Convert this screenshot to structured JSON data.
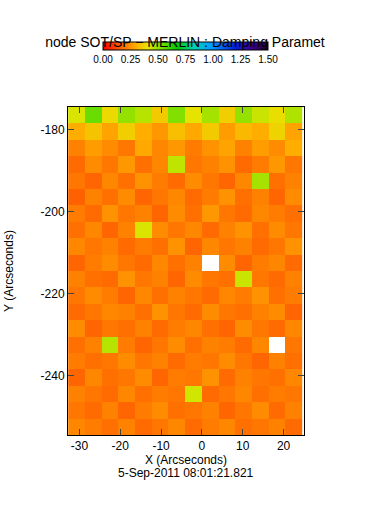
{
  "chart_data": {
    "type": "heatmap",
    "title": "node SOT/SP − MERLIN : Damping Paramet",
    "x_label": "X (Arcseconds)",
    "y_label": "Y (Arcseconds)",
    "annotation": "5-Sep-2011 08:01:21.821",
    "xlim": [
      -32.8,
      25
    ],
    "ylim": [
      -254.5,
      -174.5
    ],
    "xticks": [
      -30,
      -20,
      -10,
      0,
      10,
      20
    ],
    "yticks": [
      -180,
      -200,
      -220,
      -240
    ],
    "zlim": [
      0,
      1.5
    ],
    "zticks": [
      {
        "value": 0,
        "label": "0.00"
      },
      {
        "value": 0.25,
        "label": "0.25"
      },
      {
        "value": 0.5,
        "label": "0.50"
      },
      {
        "value": 0.75,
        "label": "0.75"
      },
      {
        "value": 1,
        "label": "1.00"
      },
      {
        "value": 1.25,
        "label": "1.25"
      },
      {
        "value": 1.5,
        "label": "1.50"
      }
    ],
    "x": [
      -30.7,
      -26.6,
      -22.5,
      -18.4,
      -14.3,
      -10.2,
      -6.1,
      -2.0,
      2.1,
      6.2,
      10.3,
      14.4,
      18.5,
      22.6
    ],
    "y": [
      -176.5,
      -180.5,
      -184.5,
      -188.5,
      -192.5,
      -196.5,
      -200.5,
      -204.5,
      -208.5,
      -212.5,
      -216.5,
      -220.5,
      -224.5,
      -228.5,
      -232.5,
      -236.5,
      -240.5,
      -244.5,
      -248.5,
      -252.5
    ],
    "z": [
      [
        0.42,
        0.55,
        0.38,
        0.5,
        0.46,
        0.35,
        0.52,
        0.4,
        0.48,
        0.36,
        0.5,
        0.44,
        0.39,
        0.47
      ],
      [
        0.3,
        0.34,
        0.28,
        0.36,
        0.3,
        0.26,
        0.33,
        0.29,
        0.35,
        0.27,
        0.32,
        0.3,
        0.37,
        0.28
      ],
      [
        0.22,
        0.27,
        0.24,
        0.2,
        0.29,
        0.23,
        0.26,
        0.21,
        0.25,
        0.28,
        0.22,
        0.27,
        0.24,
        0.3
      ],
      [
        0.18,
        0.24,
        0.2,
        0.26,
        0.19,
        0.23,
        0.45,
        0.2,
        0.22,
        0.25,
        0.18,
        0.21,
        0.26,
        0.2
      ],
      [
        0.2,
        0.17,
        0.23,
        0.19,
        0.25,
        0.21,
        0.18,
        0.24,
        0.2,
        0.17,
        0.23,
        0.48,
        0.19,
        0.22
      ],
      [
        0.16,
        0.22,
        0.19,
        0.24,
        0.17,
        0.2,
        0.23,
        0.18,
        0.21,
        0.25,
        0.19,
        0.22,
        0.17,
        0.24
      ],
      [
        0.21,
        0.18,
        0.25,
        0.2,
        0.22,
        0.17,
        0.24,
        0.19,
        0.26,
        0.2,
        0.18,
        0.23,
        0.21,
        0.19
      ],
      [
        0.19,
        0.23,
        0.17,
        0.22,
        0.42,
        0.24,
        0.2,
        0.23,
        0.18,
        0.22,
        0.25,
        0.19,
        0.24,
        0.2
      ],
      [
        0.23,
        0.2,
        0.22,
        0.18,
        0.21,
        0.19,
        0.25,
        0.17,
        0.23,
        0.2,
        0.22,
        0.18,
        0.2,
        0.25
      ],
      [
        0.17,
        0.21,
        0.24,
        0.2,
        0.18,
        0.23,
        0.19,
        0.22,
        null,
        0.24,
        0.17,
        0.21,
        0.23,
        0.18
      ],
      [
        0.22,
        0.19,
        0.18,
        0.25,
        0.2,
        0.22,
        0.17,
        0.24,
        0.2,
        0.19,
        0.44,
        0.2,
        0.18,
        0.22
      ],
      [
        0.2,
        0.24,
        0.21,
        0.17,
        0.23,
        0.19,
        0.22,
        0.2,
        0.18,
        0.23,
        0.21,
        0.25,
        0.19,
        0.21
      ],
      [
        0.18,
        0.2,
        0.23,
        0.22,
        0.19,
        0.25,
        0.2,
        0.18,
        0.24,
        0.2,
        0.19,
        0.22,
        0.24,
        0.17
      ],
      [
        0.24,
        0.17,
        0.2,
        0.19,
        0.22,
        0.18,
        0.21,
        0.23,
        0.19,
        0.17,
        0.24,
        0.2,
        0.18,
        0.23
      ],
      [
        0.19,
        0.22,
        0.46,
        0.21,
        0.17,
        0.2,
        0.24,
        0.19,
        0.22,
        0.21,
        0.18,
        0.23,
        null,
        0.2
      ],
      [
        0.21,
        0.19,
        0.2,
        0.24,
        0.2,
        0.22,
        0.18,
        0.21,
        0.2,
        0.24,
        0.2,
        0.17,
        0.22,
        0.19
      ],
      [
        0.17,
        0.23,
        0.19,
        0.2,
        0.24,
        0.17,
        0.21,
        0.2,
        0.25,
        0.18,
        0.22,
        0.2,
        0.19,
        0.23
      ],
      [
        0.22,
        0.2,
        0.18,
        0.23,
        0.19,
        0.21,
        0.2,
        0.43,
        0.18,
        0.2,
        0.23,
        0.19,
        0.21,
        0.2
      ],
      [
        0.2,
        0.18,
        0.22,
        0.17,
        0.21,
        0.24,
        0.19,
        0.2,
        0.22,
        0.17,
        0.2,
        0.24,
        0.18,
        0.22
      ],
      [
        0.23,
        0.21,
        0.19,
        0.22,
        0.18,
        0.2,
        0.23,
        0.18,
        0.21,
        0.23,
        0.19,
        0.2,
        0.22,
        0.18
      ]
    ]
  }
}
